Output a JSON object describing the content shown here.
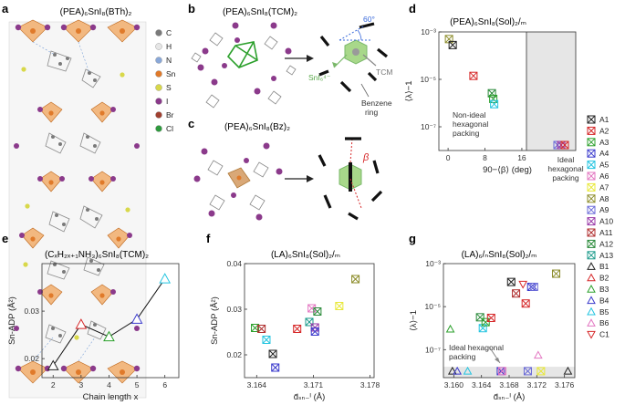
{
  "panels": {
    "a": {
      "label": "a",
      "title": "(PEA)₆SnI₈(BTh)₂",
      "legend": [
        {
          "sym": "C",
          "color": "#7a7a7a"
        },
        {
          "sym": "H",
          "color": "#e6e6e6"
        },
        {
          "sym": "N",
          "color": "#8aa8d8"
        },
        {
          "sym": "Sn",
          "color": "#e07a2a"
        },
        {
          "sym": "S",
          "color": "#d8d84a"
        },
        {
          "sym": "I",
          "color": "#8b3a8b"
        },
        {
          "sym": "Br",
          "color": "#a04030"
        },
        {
          "sym": "Cl",
          "color": "#2e9a3e"
        }
      ]
    },
    "b": {
      "label": "b",
      "title": "(PEA)₆SnI₈(TCM)₂",
      "angle_label": "60°",
      "sn_label": "SnI₆⁴⁻",
      "tcm_label": "TCM",
      "benzene_label": "Benzene\nring"
    },
    "c": {
      "label": "c",
      "title": "(PEA)₆SnI₈(Bz)₂",
      "beta_label": "β"
    },
    "d": {
      "label": "d",
      "title": "(PEA)₆SnI₈(Sol)₂/ₘ",
      "xlabel": "90−⟨β⟩ (deg)",
      "ylabel": "⟨λ⟩−1",
      "ann_nonideal_1": "Non-ideal",
      "ann_nonideal_2": "hexagonal",
      "ann_nonideal_3": "packing",
      "ann_ideal_1": "Ideal",
      "ann_ideal_2": "hexagonal",
      "ann_ideal_3": "packing"
    },
    "e": {
      "label": "e",
      "title": "(CₓH₂ₓ₊₁NH₃)₆SnI₈(TCM)₂",
      "xlabel": "Chain length x",
      "ylabel": "Sn-ADP (Å²)"
    },
    "f": {
      "label": "f",
      "title": "(LA)₆SnI₈(Sol)₂/ₘ",
      "xlabel": "d̄ₛₙ₋ᴵ (Å)",
      "ylabel": "Sn-ADP (Å²)"
    },
    "g": {
      "label": "g",
      "title": "(LA)₆/ₙSnI₈(Sol)₂/ₘ",
      "xlabel": "d̄ₛₙ₋ᴵ (Å)",
      "ylabel": "⟨λ⟩−1",
      "ann_1": "Ideal hexagonal",
      "ann_2": "packing"
    }
  },
  "legend": [
    {
      "id": "A1",
      "color": "#222222",
      "marker": "boxx"
    },
    {
      "id": "A2",
      "color": "#d62728",
      "marker": "boxx"
    },
    {
      "id": "A3",
      "color": "#2ca02c",
      "marker": "boxx"
    },
    {
      "id": "A4",
      "color": "#3a3acc",
      "marker": "boxx"
    },
    {
      "id": "A5",
      "color": "#22c4e0",
      "marker": "boxx"
    },
    {
      "id": "A6",
      "color": "#e377c2",
      "marker": "boxx"
    },
    {
      "id": "A7",
      "color": "#e8e83a",
      "marker": "boxx"
    },
    {
      "id": "A8",
      "color": "#8c8c2a",
      "marker": "boxx"
    },
    {
      "id": "A9",
      "color": "#6a6ad8",
      "marker": "boxx"
    },
    {
      "id": "A10",
      "color": "#9a3aa8",
      "marker": "boxx"
    },
    {
      "id": "A11",
      "color": "#b03030",
      "marker": "boxx"
    },
    {
      "id": "A12",
      "color": "#2a8a3a",
      "marker": "boxx"
    },
    {
      "id": "A13",
      "color": "#1a9a8a",
      "marker": "boxx"
    },
    {
      "id": "B1",
      "color": "#222222",
      "marker": "tri"
    },
    {
      "id": "B2",
      "color": "#d62728",
      "marker": "tri"
    },
    {
      "id": "B3",
      "color": "#2ca02c",
      "marker": "tri"
    },
    {
      "id": "B4",
      "color": "#3a3acc",
      "marker": "tri"
    },
    {
      "id": "B5",
      "color": "#22c4e0",
      "marker": "tri"
    },
    {
      "id": "B6",
      "color": "#e377c2",
      "marker": "tri"
    },
    {
      "id": "C1",
      "color": "#d62728",
      "marker": "itri"
    }
  ],
  "chart_data": [
    {
      "id": "d",
      "type": "scatter",
      "title": "(PEA)₆SnI₈(Sol)₂/ₘ",
      "xlabel": "90−⟨β⟩ (deg)",
      "ylabel": "⟨λ⟩−1",
      "xlim": [
        -2,
        17
      ],
      "yscale": "log",
      "ylim": [
        1e-08,
        0.001
      ],
      "xticks": [
        "0",
        "8",
        "16"
      ],
      "yticks": [
        "10⁻³",
        "10⁻⁵",
        "10⁻⁷"
      ],
      "points": [
        {
          "s": "A8",
          "x": 0.2,
          "y": 0.0005
        },
        {
          "s": "A1",
          "x": 1.0,
          "y": 0.00028
        },
        {
          "s": "A2",
          "x": 5.5,
          "y": 1.4e-05
        },
        {
          "s": "A12",
          "x": 9.5,
          "y": 2.6e-06
        },
        {
          "s": "A3",
          "x": 9.8,
          "y": 1.5e-06
        },
        {
          "s": "A5",
          "x": 10.0,
          "y": 9e-07
        }
      ],
      "ideal_points": [
        {
          "s": "A9",
          "y": 1.7e-08
        },
        {
          "s": "A10",
          "y": 1.7e-08
        },
        {
          "s": "A2",
          "y": 1.7e-08
        }
      ]
    },
    {
      "id": "e",
      "type": "line",
      "title": "(CₓH₂ₓ₊₁NH₃)₆SnI₈(TCM)₂",
      "xlabel": "Chain length x",
      "ylabel": "Sn-ADP (Å²)",
      "xlim": [
        1.6,
        6.5
      ],
      "ylim": [
        0.016,
        0.04
      ],
      "xticks": [
        "2",
        "3",
        "4",
        "5",
        "6"
      ],
      "yticks": [
        "0.02",
        "0.03"
      ],
      "points": [
        {
          "s": "B1",
          "x": 2,
          "y": 0.0185
        },
        {
          "s": "B2",
          "x": 3,
          "y": 0.0272
        },
        {
          "s": "B3",
          "x": 4,
          "y": 0.0246
        },
        {
          "s": "B4",
          "x": 5,
          "y": 0.0283
        },
        {
          "s": "B5",
          "x": 6,
          "y": 0.0368
        }
      ]
    },
    {
      "id": "f",
      "type": "scatter",
      "title": "(LA)₆SnI₈(Sol)₂/ₘ",
      "xlabel": "d̄ₛₙ₋ᴵ (Å)",
      "ylabel": "Sn-ADP (Å²)",
      "xlim": [
        3.1625,
        3.1785
      ],
      "ylim": [
        0.015,
        0.04
      ],
      "xticks": [
        "3.164",
        "3.171",
        "3.178"
      ],
      "yticks": [
        "0.02",
        "0.03",
        "0.04"
      ],
      "points": [
        {
          "s": "A3",
          "x": 3.1638,
          "y": 0.0259
        },
        {
          "s": "A11",
          "x": 3.1646,
          "y": 0.0257
        },
        {
          "s": "A5",
          "x": 3.1652,
          "y": 0.0233
        },
        {
          "s": "A1",
          "x": 3.166,
          "y": 0.0202
        },
        {
          "s": "A4",
          "x": 3.1663,
          "y": 0.0172
        },
        {
          "s": "A2",
          "x": 3.169,
          "y": 0.0257
        },
        {
          "s": "A13",
          "x": 3.1705,
          "y": 0.0272
        },
        {
          "s": "A6",
          "x": 3.1708,
          "y": 0.0302
        },
        {
          "s": "A10",
          "x": 3.1712,
          "y": 0.026
        },
        {
          "s": "A12",
          "x": 3.1715,
          "y": 0.0295
        },
        {
          "s": "A4",
          "x": 3.1712,
          "y": 0.0251
        },
        {
          "s": "A7",
          "x": 3.1742,
          "y": 0.0307
        },
        {
          "s": "A8",
          "x": 3.1762,
          "y": 0.0366
        }
      ]
    },
    {
      "id": "g",
      "type": "scatter",
      "title": "(LA)₆/ₙSnI₈(Sol)₂/ₘ",
      "xlabel": "d̄ₛₙ₋ᴵ (Å)",
      "ylabel": "⟨λ⟩−1",
      "xlim": [
        3.1585,
        3.1775
      ],
      "yscale": "log",
      "ylim": [
        5e-09,
        0.001
      ],
      "xticks": [
        "3.160",
        "3.164",
        "3.168",
        "3.172",
        "3.176"
      ],
      "yticks": [
        "10⁻³",
        "10⁻⁵",
        "10⁻⁷"
      ],
      "points": [
        {
          "s": "B3",
          "x": 3.1595,
          "y": 9e-07
        },
        {
          "s": "A12",
          "x": 3.1638,
          "y": 3.2e-06
        },
        {
          "s": "A5",
          "x": 3.1642,
          "y": 1e-06
        },
        {
          "s": "A3",
          "x": 3.1646,
          "y": 1.9e-06
        },
        {
          "s": "A2",
          "x": 3.1654,
          "y": 3e-06
        },
        {
          "s": "A1",
          "x": 3.1683,
          "y": 0.00014
        },
        {
          "s": "A11",
          "x": 3.169,
          "y": 4.1e-05
        },
        {
          "s": "C1",
          "x": 3.17,
          "y": 0.00011
        },
        {
          "s": "A2",
          "x": 3.1704,
          "y": 1.4e-05
        },
        {
          "s": "A4",
          "x": 3.1712,
          "y": 8.3e-05
        },
        {
          "s": "A9",
          "x": 3.1716,
          "y": 8.3e-05
        },
        {
          "s": "A8",
          "x": 3.1748,
          "y": 0.00034
        },
        {
          "s": "B6",
          "x": 3.1722,
          "y": 5.5e-08
        },
        {
          "s": "B1",
          "x": 3.1598,
          "y": 1e-08
        },
        {
          "s": "B4",
          "x": 3.1605,
          "y": 1e-08
        },
        {
          "s": "B5",
          "x": 3.162,
          "y": 1e-08
        },
        {
          "s": "A4",
          "x": 3.1668,
          "y": 1e-08
        },
        {
          "s": "A6",
          "x": 3.167,
          "y": 1e-08
        },
        {
          "s": "A9",
          "x": 3.1707,
          "y": 1e-08
        },
        {
          "s": "A7",
          "x": 3.1726,
          "y": 1e-08
        },
        {
          "s": "B1",
          "x": 3.1765,
          "y": 1e-08
        }
      ]
    }
  ]
}
